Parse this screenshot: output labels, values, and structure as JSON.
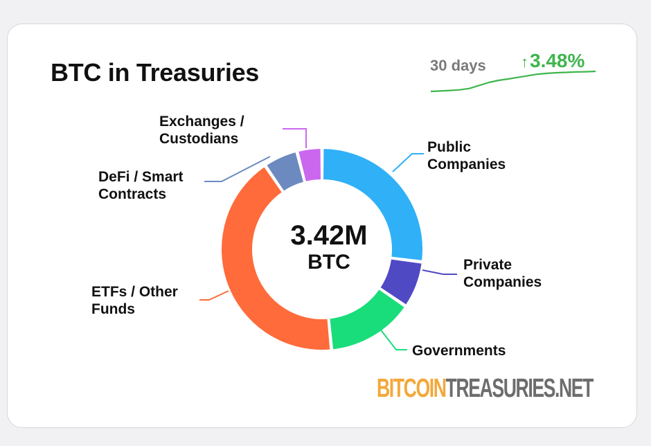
{
  "card": {
    "title": "BTC in Treasuries",
    "period_label": "30 days",
    "change_arrow": "↑",
    "change_value": "3.48%",
    "center_value": "3.42M",
    "center_unit": "BTC",
    "logo_part1": "BITCOIN",
    "logo_part2": "TREASURIES",
    "logo_part3": ".NET"
  },
  "colors": {
    "accent_green": "#3fb54c",
    "title": "#111111",
    "period": "#7a7a7a"
  },
  "sparkline": {
    "values": [
      0,
      0.02,
      0.05,
      0.08,
      0.15,
      0.3,
      0.45,
      0.55,
      0.62,
      0.7,
      0.78,
      0.86,
      0.9,
      0.93,
      0.95,
      0.97,
      0.98,
      1.0
    ],
    "color": "#3fb54c"
  },
  "chart_data": {
    "type": "pie",
    "variant": "donut",
    "title": "BTC in Treasuries",
    "total_label": "3.42M BTC",
    "slices": [
      {
        "label": "Public Companies",
        "value": 27.0,
        "color": "#2fb0f7"
      },
      {
        "label": "Private Companies",
        "value": 7.5,
        "color": "#5049c4"
      },
      {
        "label": "Governments",
        "value": 14.0,
        "color": "#19dd7a"
      },
      {
        "label": "ETFs / Other Funds",
        "value": 42.0,
        "color": "#ff6b3a"
      },
      {
        "label": "DeFi / Smart Contracts",
        "value": 5.5,
        "color": "#6d8ac0"
      },
      {
        "label": "Exchanges / Custodians",
        "value": 4.0,
        "color": "#cb67ef"
      }
    ]
  }
}
